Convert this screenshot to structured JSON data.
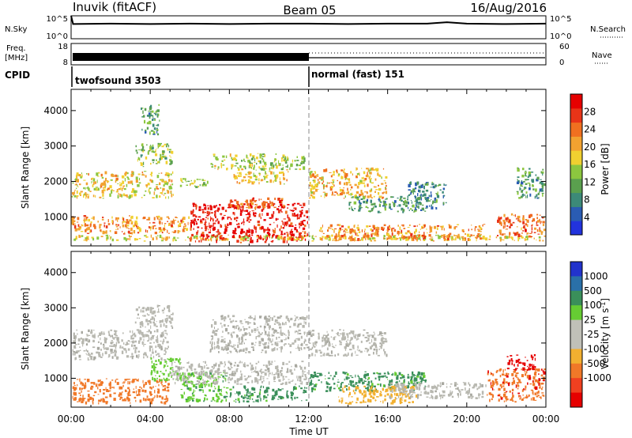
{
  "header": {
    "station": "Inuvik (fitACF)",
    "beam": "Beam 05",
    "date": "16/Aug/2016"
  },
  "colors": {
    "power_scale": [
      "#2233dd",
      "#2a5cb3",
      "#3c8a78",
      "#5aa04e",
      "#8cc63f",
      "#f0d030",
      "#f2a230",
      "#f07020",
      "#e83418",
      "#e60000"
    ],
    "velocity_scale": [
      "#e60000",
      "#f04020",
      "#f07828",
      "#f2b030",
      "#c0c0b8",
      "#c0c0b8",
      "#66cc33",
      "#3a8f5a",
      "#2a70a8",
      "#2233cc"
    ],
    "ground_scatter": "#b8b8b0"
  },
  "chart_data": [
    {
      "type": "line",
      "name": "noise-panel",
      "left_labels": [
        "N.Sky"
      ],
      "right_labels": [
        "N.Search"
      ],
      "left_ticks": [
        "10^5",
        "10^0"
      ],
      "right_ticks": [
        "10^5",
        "10^0"
      ],
      "series": [
        {
          "style": "solid",
          "x_hours": [
            0,
            0.1,
            2,
            4,
            6,
            8,
            10,
            12,
            14,
            16,
            18,
            19,
            20,
            22,
            24
          ],
          "y_log10": [
            5,
            3.2,
            3.3,
            3.2,
            3.3,
            3.2,
            3.3,
            3.3,
            3.2,
            3.3,
            3.3,
            3.6,
            3.3,
            3.2,
            3.3
          ]
        }
      ]
    },
    {
      "type": "line",
      "name": "frequency-panel",
      "left_labels": [
        "Freq.",
        "[MHz]"
      ],
      "right_labels": [
        "Nave"
      ],
      "left_ticks": [
        "18",
        "8"
      ],
      "right_ticks": [
        "60",
        "0"
      ],
      "freq_mhz": {
        "x_hours": [
          0,
          12,
          24
        ],
        "values": [
          10.5,
          10.5,
          10.5
        ]
      },
      "nave": {
        "x_hours": [
          0,
          12,
          12,
          24
        ],
        "values": [
          25,
          25,
          45,
          45
        ]
      }
    },
    {
      "type": "table",
      "name": "cpid-bar",
      "label": "CPID",
      "segments": [
        {
          "start_hour": 0,
          "text": "twofsound 3503"
        },
        {
          "start_hour": 12,
          "text": "normal (fast) 151"
        }
      ]
    },
    {
      "type": "heatmap",
      "name": "power-panel",
      "ylabel": "Slant Range [km]",
      "y_ticks": [
        1000,
        2000,
        3000,
        4000
      ],
      "ylim": [
        180,
        4600
      ],
      "xlim_hours": [
        0,
        24
      ],
      "colorbar": {
        "label": "Power [dB]",
        "ticks": [
          4,
          8,
          12,
          16,
          20,
          24,
          28
        ],
        "range": [
          0,
          32
        ]
      },
      "regions": [
        {
          "x": [
            0,
            24
          ],
          "y": [
            300,
            500
          ],
          "value": 18
        },
        {
          "x": [
            0,
            6
          ],
          "y": [
            500,
            1050
          ],
          "value": 22
        },
        {
          "x": [
            6,
            12
          ],
          "y": [
            250,
            1400
          ],
          "value": 30
        },
        {
          "x": [
            8,
            11
          ],
          "y": [
            1200,
            1550
          ],
          "value": 26
        },
        {
          "x": [
            0,
            5.2
          ],
          "y": [
            1500,
            2300
          ],
          "value": 18
        },
        {
          "x": [
            3.2,
            5.2
          ],
          "y": [
            2400,
            3100
          ],
          "value": 14
        },
        {
          "x": [
            5.5,
            7
          ],
          "y": [
            1800,
            2100
          ],
          "value": 16
        },
        {
          "x": [
            7,
            11.9
          ],
          "y": [
            2300,
            2800
          ],
          "value": 15
        },
        {
          "x": [
            8.2,
            11
          ],
          "y": [
            1900,
            2300
          ],
          "value": 18
        },
        {
          "x": [
            3.5,
            4.5
          ],
          "y": [
            3300,
            4200
          ],
          "value": 10
        },
        {
          "x": [
            12,
            16
          ],
          "y": [
            1500,
            2400
          ],
          "value": 20
        },
        {
          "x": [
            14,
            18
          ],
          "y": [
            1100,
            1600
          ],
          "value": 10
        },
        {
          "x": [
            12.5,
            21
          ],
          "y": [
            300,
            800
          ],
          "value": 22
        },
        {
          "x": [
            21.5,
            24
          ],
          "y": [
            400,
            1100
          ],
          "value": 24
        },
        {
          "x": [
            17,
            19
          ],
          "y": [
            1200,
            2000
          ],
          "value": 8
        },
        {
          "x": [
            22.5,
            24
          ],
          "y": [
            1500,
            2400
          ],
          "value": 10
        }
      ]
    },
    {
      "type": "heatmap",
      "name": "velocity-panel",
      "xlabel": "Time UT",
      "ylabel": "Slant Range [km]",
      "x_ticks": [
        "00:00",
        "04:00",
        "08:00",
        "12:00",
        "16:00",
        "20:00",
        "00:00"
      ],
      "y_ticks": [
        1000,
        2000,
        3000,
        4000
      ],
      "ylim": [
        180,
        4600
      ],
      "xlim_hours": [
        0,
        24
      ],
      "colorbar": {
        "label": "Velocity [m s^-1]",
        "ticks": [
          1000,
          500,
          100,
          25,
          -25,
          -100,
          -500,
          -1000
        ]
      },
      "regions": [
        {
          "x": [
            0,
            5
          ],
          "y": [
            250,
            1000
          ],
          "value": -300,
          "kind": "iono"
        },
        {
          "x": [
            0,
            5
          ],
          "y": [
            1500,
            2400
          ],
          "value": 0,
          "kind": "ground"
        },
        {
          "x": [
            3.2,
            5.2
          ],
          "y": [
            2400,
            3100
          ],
          "value": 0,
          "kind": "ground"
        },
        {
          "x": [
            4,
            5.6
          ],
          "y": [
            900,
            1600
          ],
          "value": 60,
          "kind": "iono"
        },
        {
          "x": [
            5.5,
            8
          ],
          "y": [
            300,
            1200
          ],
          "value": 80,
          "kind": "iono"
        },
        {
          "x": [
            5,
            12
          ],
          "y": [
            800,
            1500
          ],
          "value": 0,
          "kind": "ground"
        },
        {
          "x": [
            7,
            12
          ],
          "y": [
            1700,
            2800
          ],
          "value": 0,
          "kind": "ground"
        },
        {
          "x": [
            8,
            12
          ],
          "y": [
            300,
            800
          ],
          "value": 150,
          "kind": "iono"
        },
        {
          "x": [
            12,
            16
          ],
          "y": [
            1600,
            2400
          ],
          "value": 0,
          "kind": "ground"
        },
        {
          "x": [
            12,
            18
          ],
          "y": [
            600,
            1200
          ],
          "value": 150,
          "kind": "iono"
        },
        {
          "x": [
            13.5,
            17.5
          ],
          "y": [
            250,
            800
          ],
          "value": -60,
          "kind": "iono"
        },
        {
          "x": [
            16,
            21
          ],
          "y": [
            400,
            900
          ],
          "value": 0,
          "kind": "ground"
        },
        {
          "x": [
            21,
            24
          ],
          "y": [
            300,
            1300
          ],
          "value": -400,
          "kind": "iono"
        },
        {
          "x": [
            22,
            23.5
          ],
          "y": [
            1200,
            1700
          ],
          "value": -800,
          "kind": "iono"
        }
      ]
    }
  ]
}
